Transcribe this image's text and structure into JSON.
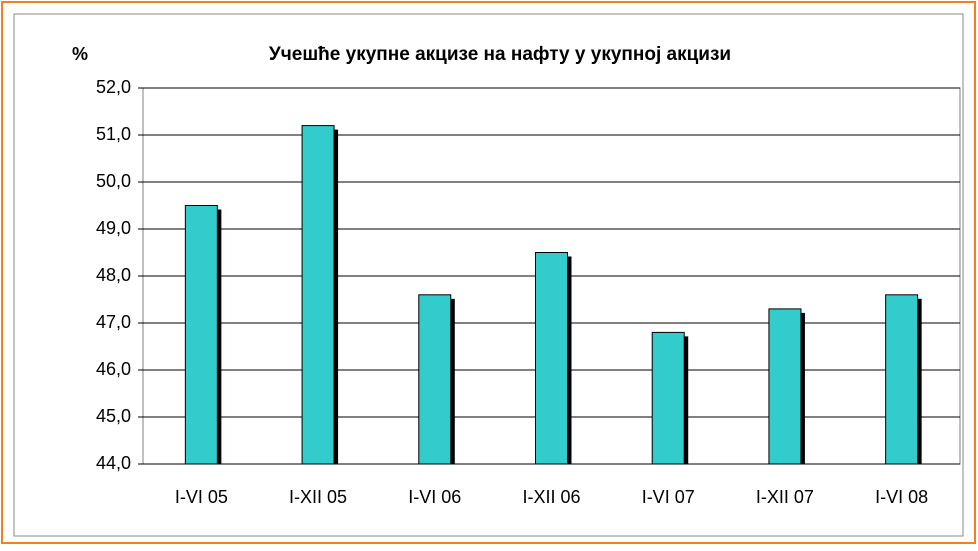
{
  "chart_data": {
    "type": "bar",
    "title": "Учешће укупне акцизе на нафту у укупној акцизи",
    "y_label": "%",
    "categories": [
      "I-VI 05",
      "I-XII 05",
      "I-VI 06",
      "I-XII 06",
      "I-VI 07",
      "I-XII 07",
      "I-VI 08"
    ],
    "values": [
      49.5,
      51.2,
      47.6,
      48.5,
      46.8,
      47.3,
      47.6
    ],
    "color": "#33cccc",
    "shadow_color": "#000000",
    "ylim": [
      44,
      52
    ],
    "yticks": [
      {
        "value": 44,
        "label": "44,0"
      },
      {
        "value": 45,
        "label": "45,0"
      },
      {
        "value": 46,
        "label": "46,0"
      },
      {
        "value": 47,
        "label": "47,0"
      },
      {
        "value": 48,
        "label": "48,0"
      },
      {
        "value": 49,
        "label": "49,0"
      },
      {
        "value": 50,
        "label": "50,0"
      },
      {
        "value": 51,
        "label": "51,0"
      },
      {
        "value": 52,
        "label": "52,0"
      }
    ],
    "grid": true
  }
}
